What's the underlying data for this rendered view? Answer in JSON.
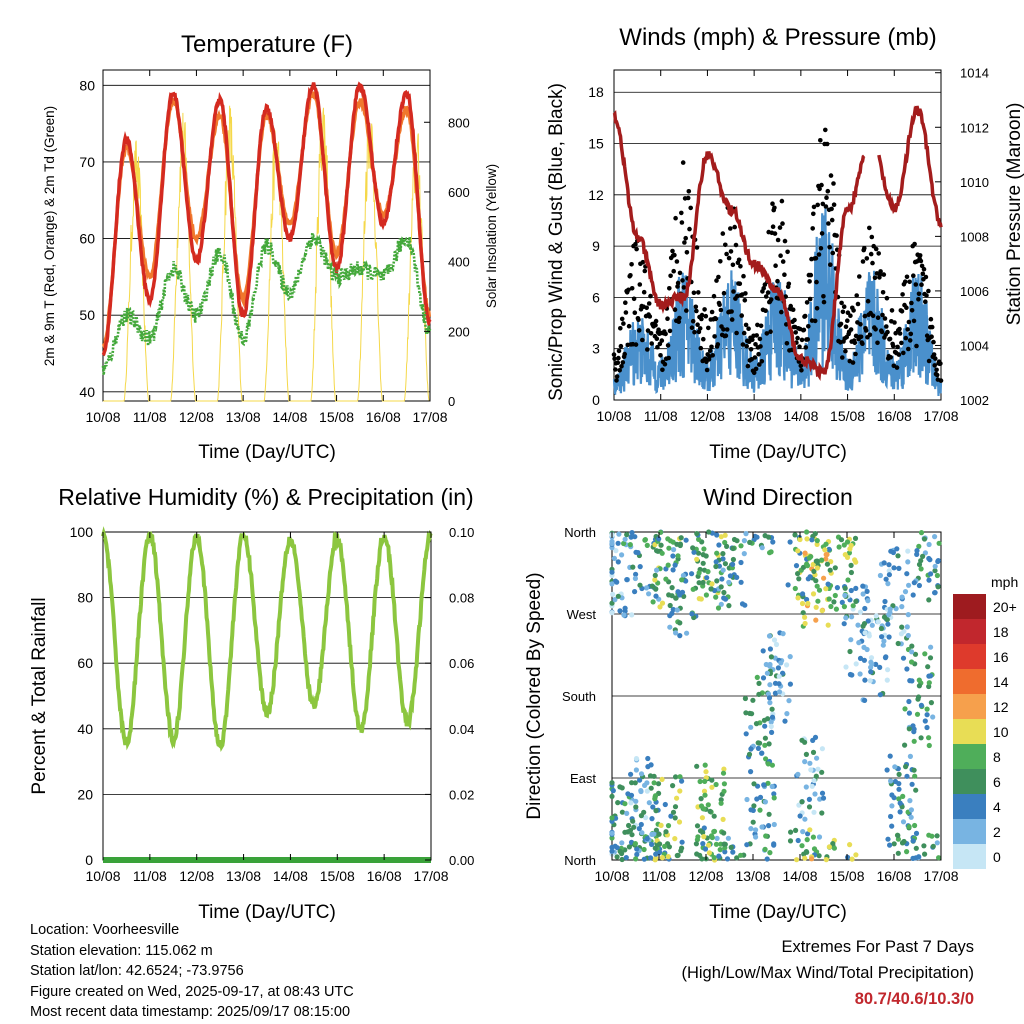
{
  "days": [
    "10/08",
    "11/08",
    "12/08",
    "13/08",
    "14/08",
    "15/08",
    "16/08",
    "17/08"
  ],
  "panels": {
    "temperature": {
      "title": "Temperature (F)",
      "ylabel": "2m & 9m T (Red, Orange) & 2m Td (Green)",
      "ylabel_right": "Solar Insolation (Yellow)",
      "xlabel": "Time (Day/UTC)",
      "yticks": [
        "40",
        "50",
        "60",
        "70",
        "80"
      ],
      "yticks_right": [
        "0",
        "200",
        "400",
        "600",
        "800"
      ]
    },
    "winds": {
      "title": "Winds (mph) & Pressure (mb)",
      "ylabel": "Sonic/Prop Wind & Gust (Blue, Black)",
      "ylabel_right": "Station Pressure (Maroon)",
      "xlabel": "Time (Day/UTC)",
      "yticks": [
        "0",
        "3",
        "6",
        "9",
        "12",
        "15",
        "18"
      ],
      "yticks_right": [
        "1002",
        "1004",
        "1006",
        "1008",
        "1010",
        "1012",
        "1014"
      ]
    },
    "humidity": {
      "title": "Relative Humidity (%) & Precipitation (in)",
      "ylabel": "Percent & Total Rainfall",
      "xlabel": "Time (Day/UTC)",
      "yticks": [
        "0",
        "20",
        "40",
        "60",
        "80",
        "100"
      ],
      "yticks_right": [
        "0.00",
        "0.02",
        "0.04",
        "0.06",
        "0.08",
        "0.10"
      ]
    },
    "direction": {
      "title": "Wind Direction",
      "ylabel": "Direction (Colored By Speed)",
      "xlabel": "Time (Day/UTC)",
      "yticks": [
        "North",
        "East",
        "South",
        "West",
        "North"
      ],
      "legend_title": "mph",
      "legend_labels": [
        "20+",
        "18",
        "16",
        "14",
        "12",
        "10",
        "8",
        "6",
        "4",
        "2",
        "0"
      ],
      "legend_colors": [
        "#9e1b1f",
        "#c1272d",
        "#de3a2c",
        "#ef6c2e",
        "#f6a04c",
        "#e8dd55",
        "#4fae5a",
        "#3f8f5c",
        "#3a7fbf",
        "#78b4e2",
        "#c6e6f5"
      ]
    }
  },
  "station": {
    "location": "Location: Voorheesville",
    "elevation": "Station elevation: 115.062 m",
    "latlon": "Station lat/lon: 42.6524; -73.9756",
    "created": "Figure created on Wed, 2025-09-17, at 08:43 UTC",
    "recent": "Most recent data timestamp: 2025/09/17 08:15:00"
  },
  "extremes": {
    "title": "Extremes For Past 7 Days",
    "subtitle": "(High/Low/Max Wind/Total Precipitation)",
    "values": "80.7/40.6/10.3/0"
  },
  "colors": {
    "temp_2m": "#d42a20",
    "temp_9m": "#f0782d",
    "dewpoint": "#43a83a",
    "solar": "#f5d84a",
    "wind": "#4a90cc",
    "gust": "#000000",
    "pressure": "#a31c1c",
    "rh": "#8cc63f",
    "precip": "#3aa23a"
  },
  "chart_data": [
    {
      "type": "line",
      "title": "Temperature (F)",
      "xlabel": "Time (Day/UTC)",
      "ylabel": "2m & 9m T (Red, Orange) & 2m Td (Green)",
      "ylabel_right": "Solar Insolation (Yellow)",
      "x": [
        "10/08",
        "10/08 12h",
        "11/08",
        "11/08 12h",
        "12/08",
        "12/08 12h",
        "13/08",
        "13/08 12h",
        "14/08",
        "14/08 12h",
        "15/08",
        "15/08 12h",
        "16/08",
        "16/08 12h",
        "17/08"
      ],
      "ylim": [
        40,
        82
      ],
      "ylim_right": [
        0,
        950
      ],
      "series": [
        {
          "values": [
            45,
            73,
            52,
            79,
            57,
            78,
            50,
            77,
            60,
            80,
            56,
            80,
            62,
            79,
            49
          ]
        },
        {
          "values": [
            46,
            72,
            55,
            78,
            60,
            76,
            52,
            76,
            62,
            79,
            58,
            78,
            63,
            77,
            50
          ]
        },
        {
          "values": [
            43,
            50,
            47,
            56,
            50,
            58,
            47,
            59,
            53,
            60,
            55,
            56,
            55,
            60,
            48
          ]
        },
        {
          "values": [
            0,
            760,
            0,
            850,
            0,
            870,
            0,
            830,
            0,
            900,
            0,
            880,
            0,
            800,
            0
          ]
        }
      ]
    },
    {
      "type": "line",
      "title": "Winds (mph) & Pressure (mb)",
      "xlabel": "Time (Day/UTC)",
      "ylabel": "Sonic/Prop Wind & Gust (Blue, Black)",
      "ylabel_right": "Station Pressure (Maroon)",
      "x": [
        "10/08",
        "10/08 12h",
        "11/08",
        "11/08 12h",
        "12/08",
        "12/08 12h",
        "13/08",
        "13/08 12h",
        "14/08",
        "14/08 12h",
        "15/08",
        "15/08 12h",
        "16/08",
        "16/08 12h",
        "17/08"
      ],
      "ylim": [
        0,
        19
      ],
      "ylim_right": [
        1002,
        1014
      ],
      "series": [
        {
          "values": [
            1,
            4,
            2,
            6,
            2,
            6,
            2,
            6,
            2,
            9,
            2,
            6,
            2,
            6,
            1
          ]
        },
        {
          "values": [
            3,
            9,
            4,
            14,
            5,
            11,
            4,
            12,
            4,
            16,
            5,
            10,
            5,
            9,
            3
          ]
        },
        {
          "values": [
            1012.4,
            1008,
            1005.5,
            1005.8,
            1011,
            1009,
            1007,
            1006,
            1003.5,
            1003,
            1009,
            1011.5,
            1009,
            1012.6,
            1008.5
          ]
        }
      ]
    },
    {
      "type": "line",
      "title": "Relative Humidity (%) & Precipitation (in)",
      "xlabel": "Time (Day/UTC)",
      "ylabel": "Percent & Total Rainfall",
      "x": [
        "10/08",
        "10/08 12h",
        "11/08",
        "11/08 12h",
        "12/08",
        "12/08 12h",
        "13/08",
        "13/08 12h",
        "14/08",
        "14/08 12h",
        "15/08",
        "15/08 12h",
        "16/08",
        "16/08 12h",
        "17/08"
      ],
      "ylim": [
        0,
        100
      ],
      "ylim_right": [
        0,
        0.1
      ],
      "series": [
        {
          "values": [
            99,
            36,
            99,
            37,
            99,
            35,
            99,
            45,
            98,
            47,
            98,
            40,
            99,
            42,
            99
          ]
        },
        {
          "values": [
            0,
            0,
            0,
            0,
            0,
            0,
            0,
            0,
            0,
            0,
            0,
            0,
            0,
            0,
            0
          ]
        }
      ]
    },
    {
      "type": "scatter",
      "title": "Wind Direction",
      "xlabel": "Time (Day/UTC)",
      "ylabel": "Direction (Colored By Speed)",
      "x": [
        "10/08",
        "11/08",
        "12/08",
        "13/08",
        "14/08",
        "15/08",
        "16/08",
        "17/08"
      ],
      "yticks": [
        "North",
        "East",
        "South",
        "West",
        "North"
      ],
      "colorbar_label": "mph",
      "colorbar_ticks": [
        "20+",
        "18",
        "16",
        "14",
        "12",
        "10",
        "8",
        "6",
        "4",
        "2",
        "0"
      ]
    }
  ]
}
